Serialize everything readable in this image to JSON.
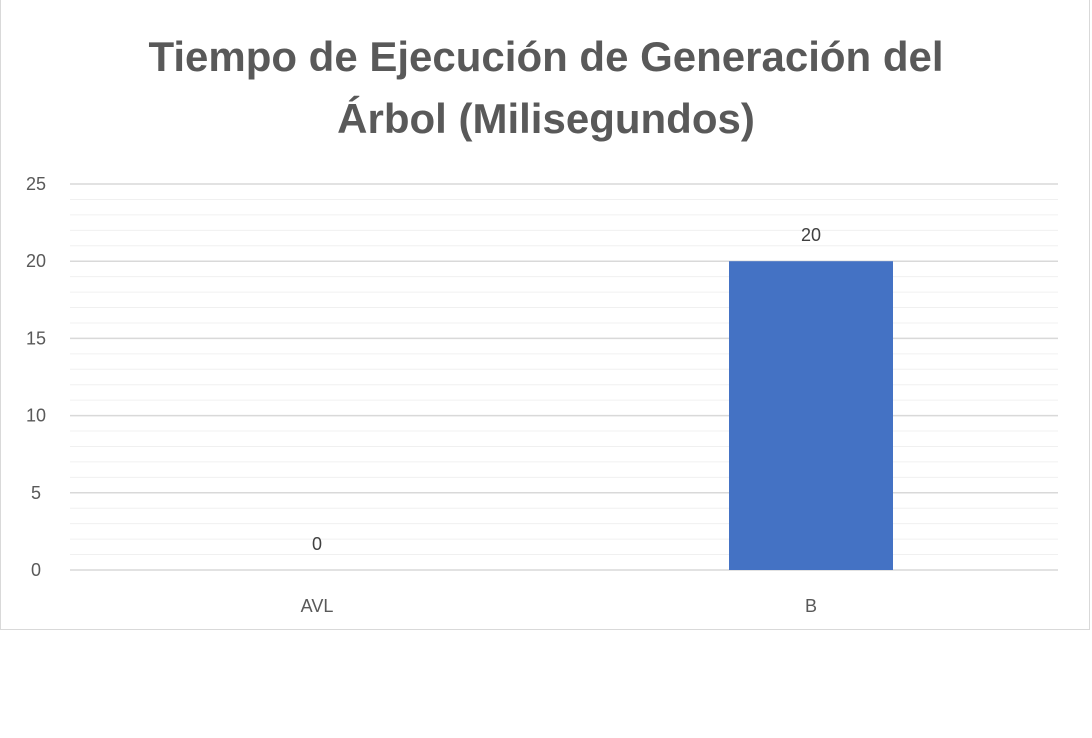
{
  "chart_data": {
    "type": "bar",
    "title_lines": [
      "Tiempo de Ejecución de Generación del",
      "Árbol (Milisegundos)"
    ],
    "categories": [
      "AVL",
      "B"
    ],
    "values": [
      0,
      20
    ],
    "data_labels": [
      "0",
      "20"
    ],
    "y_ticks": [
      "0",
      "5",
      "10",
      "15",
      "20",
      "25"
    ],
    "ylim": [
      0,
      25
    ],
    "major_step": 5,
    "minor_step": 1,
    "grid": true,
    "bar_color": "#4472C4",
    "gridline_color": "#d9d9d9",
    "minor_gridline_color": "#f0f0f0"
  }
}
